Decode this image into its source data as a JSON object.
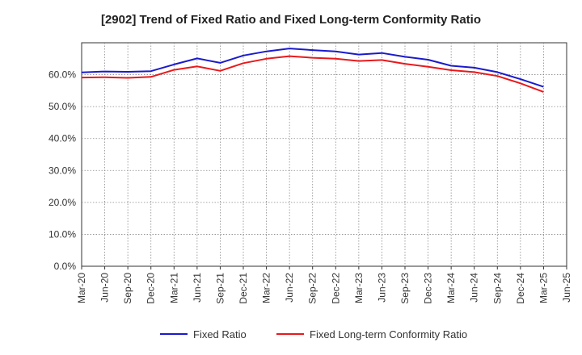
{
  "chart_data": {
    "type": "line",
    "title": "[2902]  Trend of Fixed Ratio and Fixed Long-term Conformity Ratio",
    "xlabel": "",
    "ylabel": "",
    "ylim": [
      0,
      70
    ],
    "yticks": [
      "0.0%",
      "10.0%",
      "20.0%",
      "30.0%",
      "40.0%",
      "50.0%",
      "60.0%"
    ],
    "ytick_values": [
      0,
      10,
      20,
      30,
      40,
      50,
      60
    ],
    "categories": [
      "Mar-20",
      "Jun-20",
      "Sep-20",
      "Dec-20",
      "Mar-21",
      "Jun-21",
      "Sep-21",
      "Dec-21",
      "Mar-22",
      "Jun-22",
      "Sep-22",
      "Dec-22",
      "Mar-23",
      "Jun-23",
      "Sep-23",
      "Dec-23",
      "Mar-24",
      "Jun-24",
      "Sep-24",
      "Dec-24",
      "Mar-25",
      "Jun-25"
    ],
    "grid": true,
    "legend_position": "bottom",
    "series": [
      {
        "name": "Fixed Ratio",
        "color": "#1a1acd",
        "values": [
          60.7,
          61.0,
          60.9,
          61.1,
          63.2,
          65.1,
          63.7,
          66.0,
          67.3,
          68.2,
          67.7,
          67.3,
          66.3,
          66.8,
          65.6,
          64.7,
          62.8,
          62.2,
          60.8,
          58.6,
          56.2,
          null
        ]
      },
      {
        "name": "Fixed Long-term Conformity Ratio",
        "color": "#e8191c",
        "values": [
          59.1,
          59.2,
          59.0,
          59.3,
          61.5,
          62.6,
          61.2,
          63.6,
          65.0,
          65.8,
          65.3,
          65.0,
          64.3,
          64.6,
          63.4,
          62.5,
          61.4,
          60.8,
          59.6,
          57.3,
          54.6,
          null
        ]
      }
    ]
  }
}
